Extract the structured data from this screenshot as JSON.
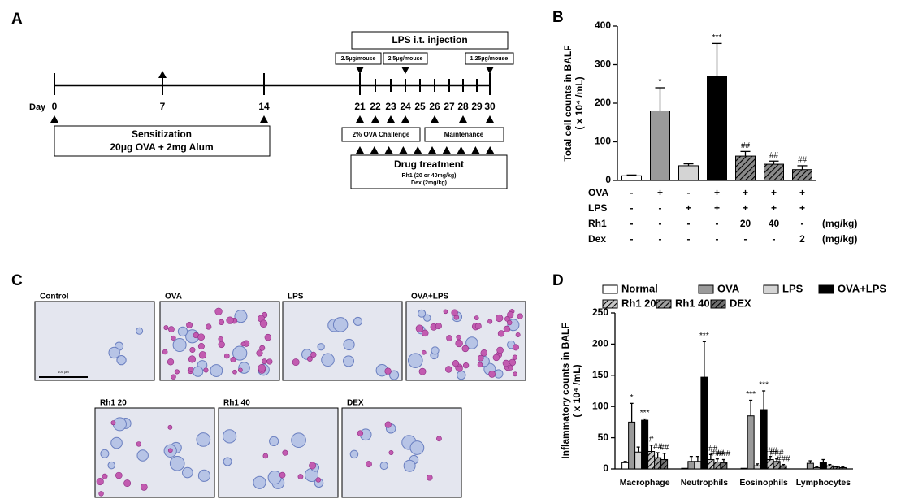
{
  "panel_labels": [
    "A",
    "B",
    "C",
    "D"
  ],
  "timeline": {
    "day_label": "Day",
    "days": [
      "0",
      "7",
      "14",
      "21",
      "22",
      "23",
      "24",
      "25",
      "26",
      "27",
      "28",
      "29",
      "30"
    ],
    "lps_title": "LPS i.t. injection",
    "doses": [
      "2.5μg/mouse",
      "2.5μg/mouse",
      "1.25μg/mouse"
    ],
    "sensitization": {
      "title": "Sensitization",
      "detail": "20μg OVA + 2mg Alum"
    },
    "challenge": "2% OVA Challenge",
    "maintenance": "Maintenance",
    "drug": {
      "title": "Drug treatment",
      "lines": [
        "Rh1 (20 or 40mg/kg)",
        "Dex (2mg/kg)"
      ]
    }
  },
  "micrographs": {
    "panels": [
      "Control",
      "OVA",
      "LPS",
      "OVA+LPS",
      "Rh1 20",
      "Rh1 40",
      "DEX"
    ],
    "scale_bar": "100 μm"
  },
  "chart_data": [
    {
      "type": "bar",
      "y_label": [
        "Total cell counts in BALF",
        "( x 10⁴ /mL)"
      ],
      "categories": [
        null,
        null,
        null,
        null,
        null,
        null,
        null
      ],
      "values": [
        12,
        180,
        38,
        270,
        63,
        42,
        28
      ],
      "errors": [
        2,
        60,
        5,
        85,
        12,
        8,
        10
      ],
      "colors": [
        "#ffffff",
        "#9a9a9a",
        "#d4d4d4",
        "#000000",
        "#8a8a8a",
        "#8a8a8a",
        "#8a8a8a"
      ],
      "hatch": [
        false,
        false,
        false,
        false,
        true,
        true,
        true
      ],
      "annotations": [
        null,
        "*",
        null,
        "***",
        "##",
        "##",
        "##"
      ],
      "ylim": [
        0,
        400
      ],
      "yticks": [
        0,
        100,
        200,
        300,
        400
      ],
      "treatment_table": {
        "rows": [
          {
            "label": "OVA",
            "cells": [
              "-",
              "+",
              "-",
              "+",
              "+",
              "+",
              "+"
            ]
          },
          {
            "label": "LPS",
            "cells": [
              "-",
              "-",
              "+",
              "+",
              "+",
              "+",
              "+"
            ]
          },
          {
            "label": "Rh1",
            "cells": [
              "-",
              "-",
              "-",
              "-",
              "20",
              "40",
              "-"
            ],
            "unit": "(mg/kg)"
          },
          {
            "label": "Dex",
            "cells": [
              "-",
              "-",
              "-",
              "-",
              "-",
              "-",
              "2"
            ],
            "unit": "(mg/kg)"
          }
        ]
      }
    },
    {
      "type": "grouped_bar",
      "y_label": [
        "Inflammatory counts in BALF",
        "( x 10⁴ /mL)"
      ],
      "categories": [
        "Macrophage",
        "Neutrophils",
        "Eosinophils",
        "Lymphocytes"
      ],
      "series": [
        {
          "name": "Normal",
          "color": "#ffffff",
          "hatch": false,
          "values": [
            10,
            1,
            1,
            0
          ],
          "errors": [
            2,
            0,
            0,
            0
          ],
          "annotations": [
            null,
            null,
            null,
            null
          ]
        },
        {
          "name": "OVA",
          "color": "#9a9a9a",
          "hatch": false,
          "values": [
            75,
            12,
            85,
            9
          ],
          "errors": [
            30,
            8,
            25,
            4
          ],
          "annotations": [
            "*",
            null,
            "***",
            null
          ]
        },
        {
          "name": "LPS",
          "color": "#d4d4d4",
          "hatch": false,
          "values": [
            27,
            12,
            5,
            2
          ],
          "errors": [
            8,
            8,
            3,
            1
          ],
          "annotations": [
            null,
            null,
            null,
            null
          ]
        },
        {
          "name": "OVA+LPS",
          "color": "#000000",
          "hatch": false,
          "values": [
            78,
            147,
            95,
            10
          ],
          "errors": [
            2,
            57,
            30,
            5
          ],
          "annotations": [
            "***",
            "***",
            "***",
            null
          ]
        },
        {
          "name": "Rh1 20",
          "color": "#c8c8c8",
          "hatch": true,
          "values": [
            28,
            15,
            15,
            5
          ],
          "errors": [
            10,
            8,
            5,
            2
          ],
          "annotations": [
            "#",
            "###",
            "###",
            null
          ]
        },
        {
          "name": "Rh1 40",
          "color": "#a0a0a0",
          "hatch": true,
          "values": [
            18,
            11,
            12,
            3
          ],
          "errors": [
            8,
            5,
            4,
            1
          ],
          "annotations": [
            "##",
            "###",
            "###",
            null
          ]
        },
        {
          "name": "DEX",
          "color": "#707070",
          "hatch": true,
          "values": [
            15,
            10,
            5,
            2
          ],
          "errors": [
            10,
            5,
            2,
            1
          ],
          "annotations": [
            "##",
            "###",
            "###",
            null
          ]
        }
      ],
      "ylim": [
        0,
        250
      ],
      "yticks": [
        0,
        50,
        100,
        150,
        200,
        250
      ]
    }
  ]
}
